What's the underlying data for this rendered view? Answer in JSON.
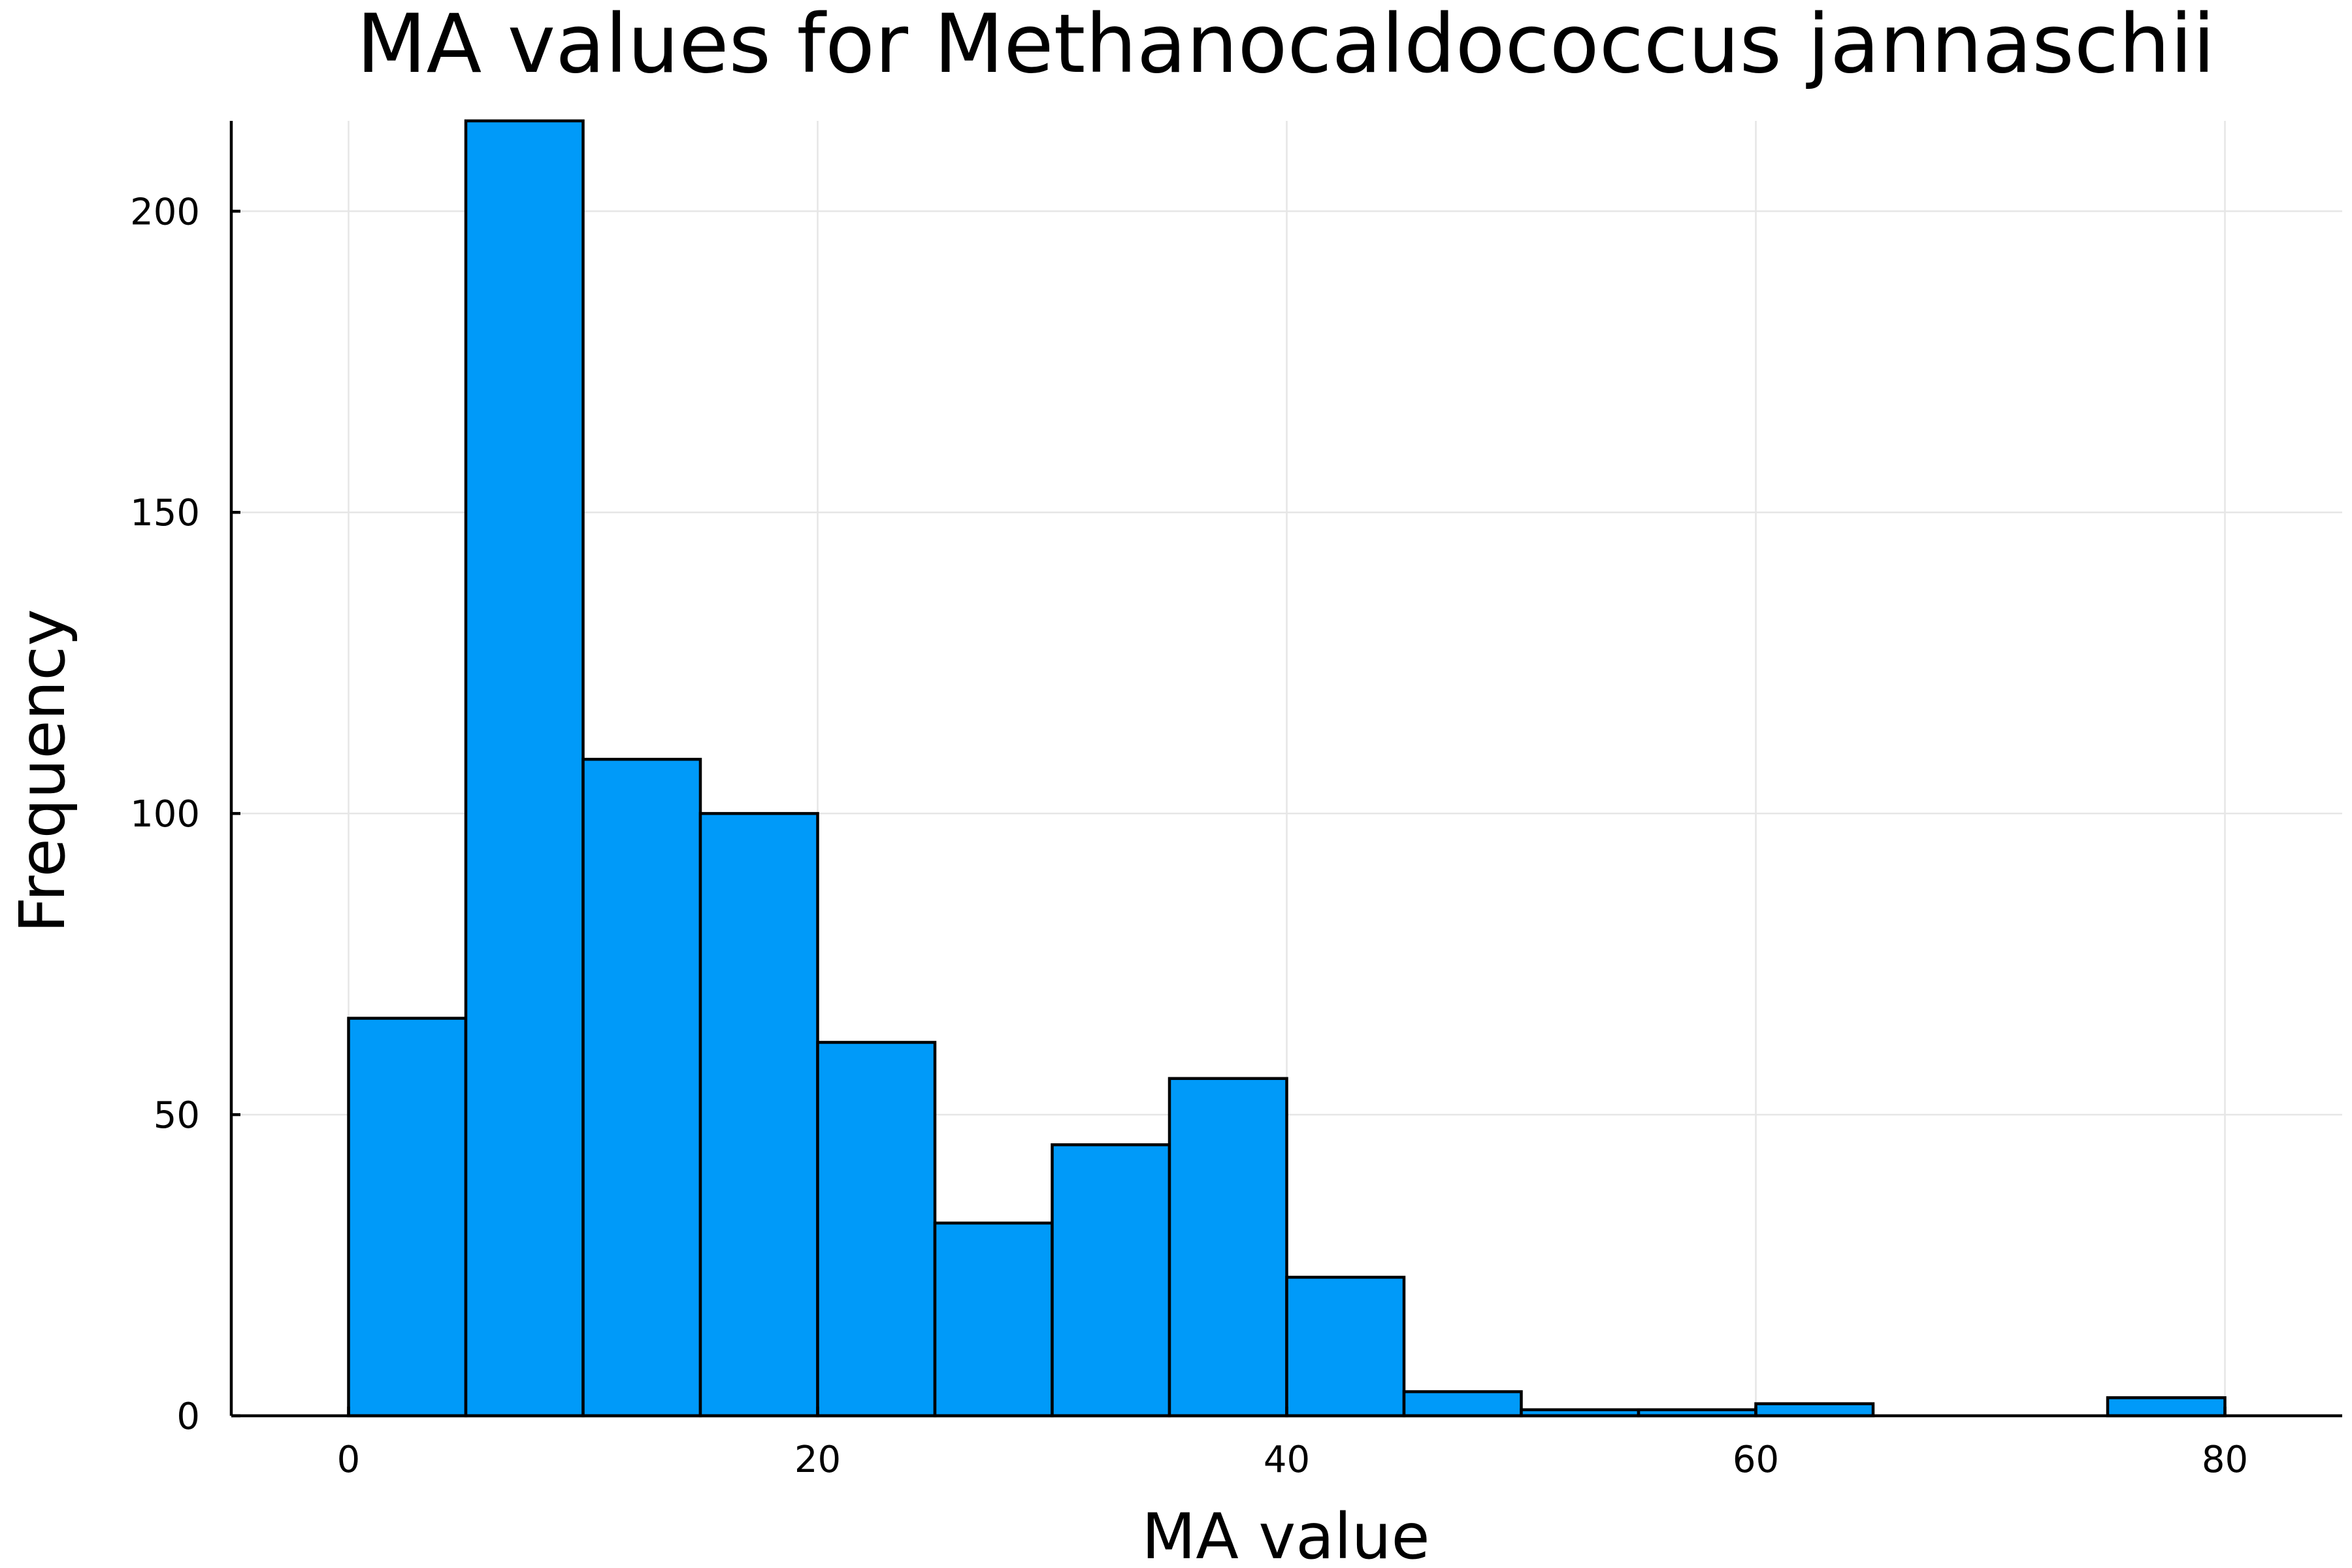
{
  "chart_data": {
    "type": "bar",
    "title": "MA values for Methanocaldococcus jannaschii",
    "xlabel": "MA value",
    "ylabel": "Frequency",
    "bin_width": 5,
    "bins": [
      {
        "start": 0,
        "end": 5,
        "count": 66
      },
      {
        "start": 5,
        "end": 10,
        "count": 215
      },
      {
        "start": 10,
        "end": 15,
        "count": 109
      },
      {
        "start": 15,
        "end": 20,
        "count": 100
      },
      {
        "start": 20,
        "end": 25,
        "count": 62
      },
      {
        "start": 25,
        "end": 30,
        "count": 32
      },
      {
        "start": 30,
        "end": 35,
        "count": 45
      },
      {
        "start": 35,
        "end": 40,
        "count": 56
      },
      {
        "start": 40,
        "end": 45,
        "count": 23
      },
      {
        "start": 45,
        "end": 50,
        "count": 4
      },
      {
        "start": 50,
        "end": 55,
        "count": 1
      },
      {
        "start": 55,
        "end": 60,
        "count": 1
      },
      {
        "start": 60,
        "end": 65,
        "count": 2
      },
      {
        "start": 65,
        "end": 70,
        "count": 0
      },
      {
        "start": 70,
        "end": 75,
        "count": 0
      },
      {
        "start": 75,
        "end": 80,
        "count": 3
      }
    ],
    "xlim": [
      -5,
      85
    ],
    "ylim": [
      0,
      215
    ],
    "xticks": [
      0,
      20,
      40,
      60,
      80
    ],
    "yticks": [
      0,
      50,
      100,
      150,
      200
    ],
    "grid": true,
    "legend": "none",
    "bar_color": "#009af9",
    "edge_color": "#000000"
  }
}
